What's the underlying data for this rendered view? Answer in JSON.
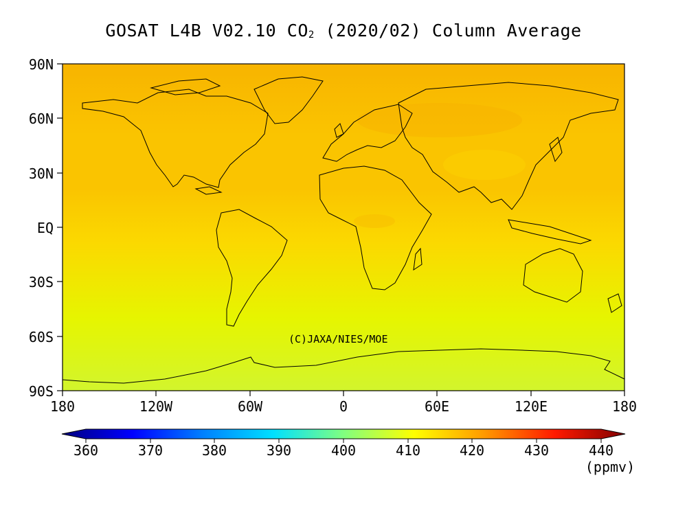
{
  "title_main": "GOSAT L4B V02.10 CO",
  "title_sub": "2",
  "title_tail": " (2020/02) Column Average",
  "lat_labels": [
    "90N",
    "60N",
    "30N",
    "EQ",
    "30S",
    "60S",
    "90S"
  ],
  "lon_labels": [
    "180",
    "120W",
    "60W",
    "0",
    "60E",
    "120E",
    "180"
  ],
  "colorbar": {
    "ticks": [
      "360",
      "370",
      "380",
      "390",
      "400",
      "410",
      "420",
      "430",
      "440"
    ],
    "units": "(ppmv)",
    "colors": [
      "#000080",
      "#0000ff",
      "#0080ff",
      "#00e0ff",
      "#80ff80",
      "#ffff00",
      "#ff9900",
      "#ff1a00",
      "#800000"
    ]
  },
  "credit": "(C)JAXA/NIES/MOE",
  "map_colors": {
    "arctic": "#f8b400",
    "northern_mid": "#fac400",
    "tropics": "#fbd900",
    "southern": "#e6f500",
    "antarctic": "#d2f52d"
  }
}
